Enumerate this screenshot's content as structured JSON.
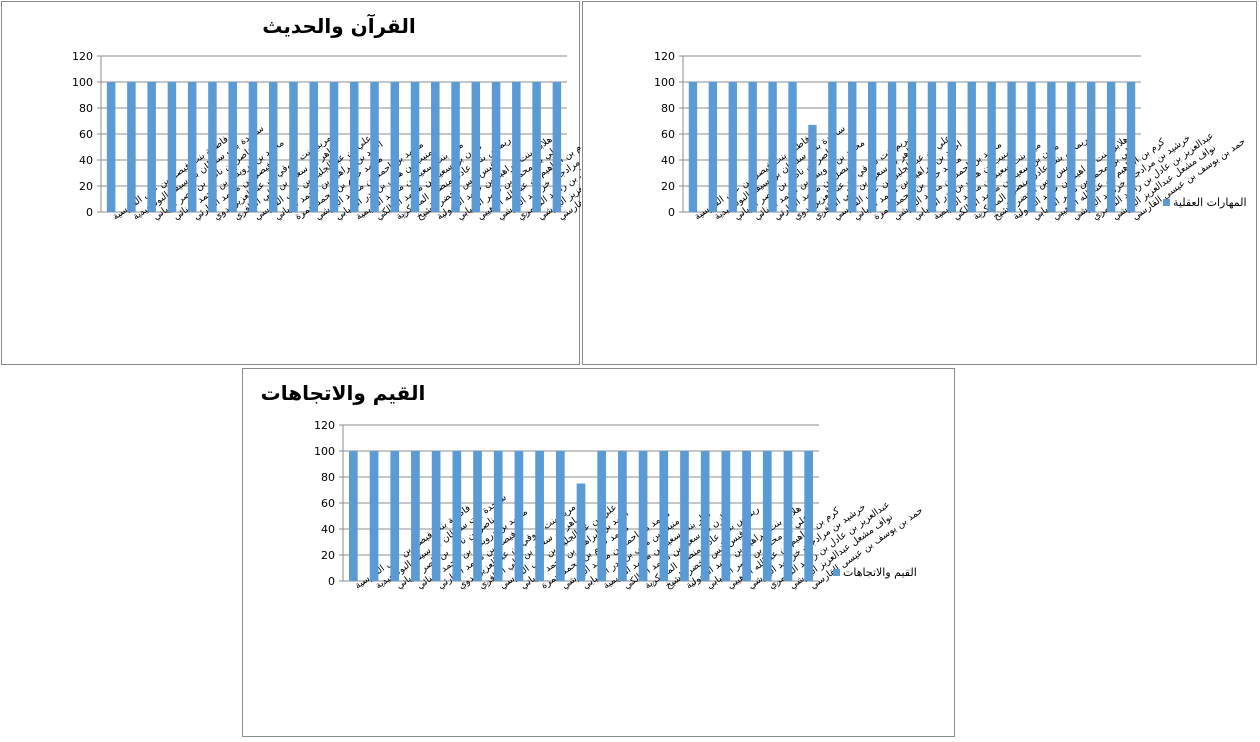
{
  "chart_data": [
    {
      "type": "bar",
      "title": "القرآن والحديث",
      "ylim": [
        0,
        120
      ],
      "yticks": [
        0,
        20,
        40,
        60,
        80,
        100,
        120
      ],
      "grid": true,
      "legend": "none",
      "color": "#5b9bd5",
      "categories": [
        "فاطمة بنت فيصل بن علي القارسية",
        "ساجدة بنت سلطان بن سيف البوسعيدية",
        "ناصر بن ناظر بن ناصر الرياني",
        "محمد بن درويش بن محمد الهنائي",
        "فيصل بن محمد الحارثي",
        "مريم بنت شوقي بن عبدالعزيز بدوي",
        "ماهر بن سعود بن علي الغافري",
        "علي بن عبدالجليل بن علي القارسي",
        "احمد بن ابراهيم بن محمد الرياني",
        "محمد حاتم بن محمد حمزة",
        "محمد بن احمد بن محمد البلوشي",
        "منيب بن هاني بن بدر السيابي",
        "ميار بنت سعيد بن محمد العريمية",
        "مازن بن سعيد بن محمد المالكي",
        "ريماس بنت عادل منصور المسكرية",
        "قيس انس الخضر الشيخ",
        "هلابل بنت ابراهيم بن حميد المعولية",
        "علي بن محمد بن ناصر السيابي",
        "كرم بن ابراهيم بن عبدالله الوهيبي",
        "خرشيد بن مرادجان خرشيد البلوشي",
        "عبدالعزيز بن عادل بن راشد المعمري",
        "نواف مشعل عبدالعزيز البلوشي",
        "حمد بن يوسف بن عيسى القارسي"
      ],
      "values": [
        100,
        100,
        100,
        100,
        100,
        100,
        100,
        100,
        100,
        100,
        100,
        100,
        100,
        100,
        100,
        100,
        100,
        100,
        100,
        100,
        100,
        100,
        100
      ]
    },
    {
      "type": "bar",
      "title": "المهارات العقلية",
      "ylim": [
        0,
        120
      ],
      "yticks": [
        0,
        20,
        40,
        60,
        80,
        100,
        120
      ],
      "grid": true,
      "legend": "right",
      "color": "#5b9bd5",
      "categories": [
        "فاطمة بنت فيصل بن علي القارسية",
        "ساجدة بنت سلطان بن سيف البوسعيدية",
        "ناصر بن ناظر بن ناصر الرياني",
        "محمد بن درويش بن محمد الهنائي",
        "فيصل بن محمد الحارثي",
        "مريم بنت شوقي بن عبدالعزيز بدوي",
        "ماهر بن سعود بن علي الغافري",
        "علي بن عبدالجليل بن علي القارسي",
        "احمد بن ابراهيم بن محمد الرياني",
        "محمد حاتم بن محمد حمزة",
        "محمد بن احمد بن محمد البلوشي",
        "منيب بن هاني بن بدر السيابي",
        "ميار بنت سعيد بن محمد العريمية",
        "مازن بن سعيد بن محمد المالكي",
        "ريماس بنت عادل منصور المسكرية",
        "قيس انس الخضر الشيخ",
        "هلابل بنت ابراهيم بن حميد المعولية",
        "علي بن محمد بن ناصر السيابي",
        "كرم بن ابراهيم بن عبدالله الوهيبي",
        "خرشيد بن مرادجان خرشيد البلوشي",
        "عبدالعزيز بن عادل بن راشد المعمري",
        "نواف مشعل عبدالعزيز البلوشي",
        "حمد بن يوسف بن عيسى القارسي"
      ],
      "series": [
        {
          "name": "المهارات العقلية",
          "values": [
            100,
            100,
            100,
            100,
            100,
            100,
            67,
            100,
            100,
            100,
            100,
            100,
            100,
            100,
            100,
            100,
            100,
            100,
            100,
            100,
            100,
            100,
            100
          ]
        }
      ]
    },
    {
      "type": "bar",
      "title": "القيم والاتجاهات",
      "ylim": [
        0,
        120
      ],
      "yticks": [
        0,
        20,
        40,
        60,
        80,
        100,
        120
      ],
      "grid": true,
      "legend": "right",
      "color": "#5b9bd5",
      "categories": [
        "فاطمة بنت فيصل بن علي القارسية",
        "ساجدة بنت سلطان بن سيف البوسعيدية",
        "ناصر بن ناظر بن ناصر الرياني",
        "محمد بن درويش بن محمد الهنائي",
        "فيصل بن محمد الحارثي",
        "مريم بنت شوقي بن عبدالعزيز بدوي",
        "ماهر بن سعود بن علي الغافري",
        "علي بن عبدالجليل بن علي القارسي",
        "احمد بن ابراهيم بن محمد الرياني",
        "محمد حاتم بن محمد حمزة",
        "محمد بن احمد بن محمد البلوشي",
        "منيب بن هاني بن بدر السيابي",
        "ميار بنت سعيد بن محمد العريمية",
        "مازن بن سعيد بن محمد المالكي",
        "ريماس بنت عادل منصور المسكرية",
        "قيس انس الخضر الشيخ",
        "هلابل بنت ابراهيم بن حميد المعولية",
        "علي بن محمد بن ناصر السيابي",
        "كرم بن ابراهيم بن عبدالله الوهيبي",
        "خرشيد بن مرادجان خرشيد البلوشي",
        "عبدالعزيز بن عادل بن راشد المعمري",
        "نواف مشعل عبدالعزيز البلوشي",
        "حمد بن يوسف بن عيسى القارسي"
      ],
      "series": [
        {
          "name": "القيم والاتجاهات",
          "values": [
            100,
            100,
            100,
            100,
            100,
            100,
            100,
            100,
            100,
            100,
            100,
            75,
            100,
            100,
            100,
            100,
            100,
            100,
            100,
            100,
            100,
            100,
            100
          ]
        }
      ]
    }
  ]
}
